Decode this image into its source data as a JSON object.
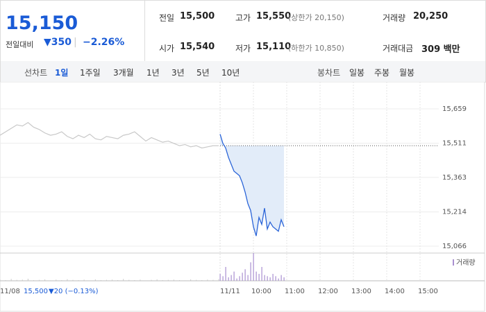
{
  "quote": {
    "price": "15,150",
    "change_label": "전일대비",
    "change": "▼350",
    "change_rate": "−2.26%"
  },
  "stats": [
    {
      "label": "전일",
      "value": "15,500"
    },
    {
      "label": "고가",
      "value": "15,550",
      "note": "(상한가 20,150)"
    },
    {
      "label": "거래량",
      "value": "20,250"
    },
    {
      "label": "시가",
      "value": "15,540"
    },
    {
      "label": "저가",
      "value": "15,110",
      "note": "(하한가 10,850)"
    },
    {
      "label": "거래대금",
      "value": "309 백만"
    }
  ],
  "tabs": {
    "line_label": "선차트",
    "periods": [
      "1일",
      "1주일",
      "3개월",
      "1년",
      "3년",
      "5년",
      "10년"
    ],
    "selected": 0,
    "candle_label": "봉차트",
    "candles": [
      "일봉",
      "주봉",
      "월봉"
    ]
  },
  "chart_data": {
    "type": "line",
    "ylim": [
      15045,
      15776
    ],
    "yticks": [
      {
        "value": 15659,
        "label": "15,659"
      },
      {
        "value": 15511,
        "label": "15,511"
      },
      {
        "value": 15363,
        "label": "15,363"
      },
      {
        "value": 15214,
        "label": "15,214"
      },
      {
        "value": 15066,
        "label": "15,066"
      }
    ],
    "reference": 15500,
    "grid": true,
    "prev_day": {
      "label": "11/08",
      "close": "15,500",
      "change": "▼20 (−0.13%)",
      "color": "#c8c8c8",
      "values": [
        15545,
        15560,
        15575,
        15590,
        15585,
        15600,
        15580,
        15570,
        15555,
        15545,
        15550,
        15560,
        15540,
        15530,
        15545,
        15535,
        15550,
        15530,
        15525,
        15540,
        15535,
        15530,
        15545,
        15550,
        15560,
        15540,
        15520,
        15535,
        15525,
        15515,
        15520,
        15510,
        15500,
        15505,
        15495,
        15500,
        15490,
        15495,
        15500,
        15500
      ],
      "volumes": [
        6,
        3,
        8,
        4,
        5,
        9,
        3,
        4,
        6,
        2,
        5,
        3,
        7,
        4,
        3,
        5,
        2,
        6,
        3,
        4,
        5,
        3,
        8,
        4,
        3,
        5,
        2,
        4,
        6,
        3,
        4,
        5,
        3,
        2,
        6,
        4,
        3,
        5,
        4,
        7
      ]
    },
    "today": {
      "label": "11/11",
      "color": "#2a64d8",
      "fill": "#e2ecf9",
      "values": [
        15550,
        15510,
        15490,
        15450,
        15420,
        15390,
        15380,
        15370,
        15340,
        15300,
        15250,
        15220,
        15150,
        15110,
        15190,
        15160,
        15230,
        15140,
        15170,
        15150,
        15140,
        15130,
        15180,
        15150
      ],
      "volumes": [
        30,
        20,
        60,
        15,
        25,
        40,
        10,
        20,
        35,
        50,
        25,
        80,
        120,
        40,
        30,
        60,
        25,
        20,
        15,
        30,
        20,
        10,
        25,
        15
      ],
      "volume_color": "#a98fd0"
    },
    "volume_label": "거래량",
    "hours": [
      "10:00",
      "11:00",
      "12:00",
      "13:00",
      "14:00",
      "15:00"
    ]
  }
}
